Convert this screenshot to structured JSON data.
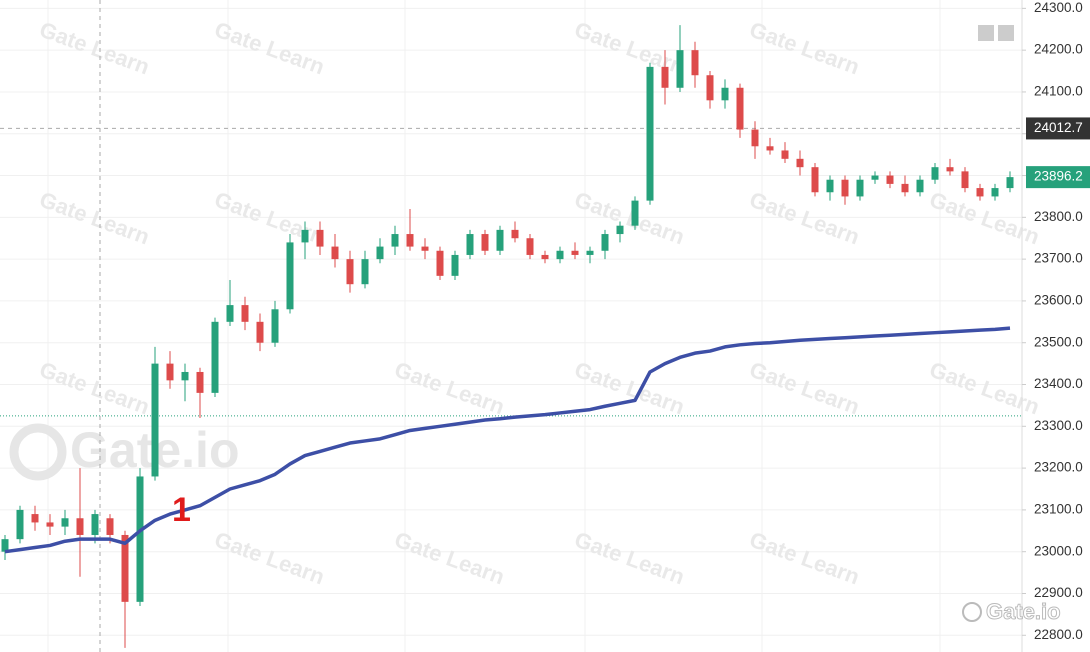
{
  "chart_data": {
    "type": "candlestick",
    "watermark": "Gate Learn",
    "brand": "Gate.io",
    "annotation": "1",
    "ylim": [
      22760,
      24320
    ],
    "yticks": [
      {
        "value": 24300,
        "label": "24300.0"
      },
      {
        "value": 24200,
        "label": "24200.0"
      },
      {
        "value": 24100,
        "label": "24100.0"
      },
      {
        "value": 24000,
        "label": "24000.0"
      },
      {
        "value": 23900,
        "label": "23900.0"
      },
      {
        "value": 23800,
        "label": "23800.0"
      },
      {
        "value": 23700,
        "label": "23700.0"
      },
      {
        "value": 23600,
        "label": "23600.0"
      },
      {
        "value": 23500,
        "label": "23500.0"
      },
      {
        "value": 23400,
        "label": "23400.0"
      },
      {
        "value": 23300,
        "label": "23300.0"
      },
      {
        "value": 23200,
        "label": "23200.0"
      },
      {
        "value": 23100,
        "label": "23100.0"
      },
      {
        "value": 23000,
        "label": "23000.0"
      },
      {
        "value": 22900,
        "label": "22900.0"
      },
      {
        "value": 22800,
        "label": "22800.0"
      }
    ],
    "grid": true,
    "crosshair_price": 24012.7,
    "last_price": 23896.2,
    "reference_line": 23325,
    "candles": {
      "up_color": "#26a17b",
      "down_color": "#dd4b4b",
      "open": [
        23000,
        23030,
        23090,
        23070,
        23060,
        23080,
        23040,
        23080,
        23040,
        22880,
        23180,
        23450,
        23410,
        23430,
        23380,
        23550,
        23590,
        23550,
        23500,
        23580,
        23740,
        23770,
        23730,
        23700,
        23640,
        23700,
        23730,
        23760,
        23730,
        23720,
        23660,
        23710,
        23760,
        23720,
        23770,
        23750,
        23710,
        23700,
        23720,
        23710,
        23720,
        23760,
        23780,
        23840,
        24160,
        24110,
        24200,
        24140,
        24080,
        24110,
        24010,
        23970,
        23960,
        23940,
        23920,
        23860,
        23890,
        23850,
        23890,
        23900,
        23880,
        23860,
        23890,
        23920,
        23910,
        23870,
        23850,
        23870
      ],
      "high": [
        23040,
        23110,
        23110,
        23090,
        23100,
        23200,
        23100,
        23090,
        23050,
        23200,
        23490,
        23480,
        23450,
        23440,
        23560,
        23650,
        23610,
        23570,
        23600,
        23760,
        23790,
        23790,
        23760,
        23720,
        23720,
        23750,
        23780,
        23820,
        23750,
        23730,
        23720,
        23770,
        23770,
        23780,
        23790,
        23760,
        23720,
        23730,
        23740,
        23730,
        23770,
        23790,
        23850,
        24170,
        24200,
        24260,
        24220,
        24150,
        24130,
        24120,
        24030,
        23990,
        23980,
        23960,
        23930,
        23900,
        23900,
        23900,
        23910,
        23910,
        23900,
        23900,
        23930,
        23940,
        23920,
        23880,
        23880,
        23910
      ],
      "low": [
        22980,
        23020,
        23050,
        23040,
        23040,
        22940,
        23020,
        23020,
        22770,
        22870,
        23170,
        23390,
        23360,
        23320,
        23370,
        23540,
        23530,
        23480,
        23490,
        23570,
        23700,
        23710,
        23680,
        23620,
        23630,
        23690,
        23710,
        23720,
        23700,
        23650,
        23650,
        23700,
        23710,
        23710,
        23740,
        23700,
        23690,
        23690,
        23700,
        23690,
        23700,
        23740,
        23770,
        23830,
        24070,
        24100,
        24110,
        24060,
        24060,
        23990,
        23940,
        23950,
        23930,
        23900,
        23850,
        23840,
        23830,
        23840,
        23880,
        23870,
        23850,
        23850,
        23880,
        23900,
        23860,
        23840,
        23840,
        23860
      ],
      "close": [
        23030,
        23100,
        23070,
        23060,
        23080,
        23040,
        23090,
        23040,
        22880,
        23180,
        23450,
        23410,
        23430,
        23380,
        23550,
        23590,
        23550,
        23500,
        23580,
        23740,
        23770,
        23730,
        23700,
        23640,
        23700,
        23730,
        23760,
        23730,
        23720,
        23660,
        23710,
        23760,
        23720,
        23770,
        23750,
        23710,
        23700,
        23720,
        23710,
        23720,
        23760,
        23780,
        23840,
        24160,
        24110,
        24200,
        24140,
        24080,
        24110,
        24010,
        23970,
        23960,
        23940,
        23920,
        23860,
        23890,
        23850,
        23890,
        23900,
        23880,
        23860,
        23890,
        23920,
        23910,
        23870,
        23850,
        23870,
        23896.2
      ]
    },
    "line": {
      "color": "#3d4fa6",
      "values": [
        23000,
        23005,
        23010,
        23015,
        23025,
        23030,
        23030,
        23030,
        23020,
        23050,
        23075,
        23090,
        23100,
        23110,
        23130,
        23150,
        23160,
        23170,
        23185,
        23210,
        23230,
        23240,
        23250,
        23260,
        23265,
        23270,
        23280,
        23290,
        23295,
        23300,
        23305,
        23310,
        23315,
        23318,
        23322,
        23325,
        23328,
        23332,
        23336,
        23340,
        23348,
        23355,
        23362,
        23430,
        23450,
        23465,
        23475,
        23480,
        23490,
        23495,
        23498,
        23500,
        23503,
        23506,
        23508,
        23510,
        23512,
        23514,
        23516,
        23518,
        23520,
        23522,
        23524,
        23526,
        23528,
        23530,
        23532,
        23535
      ]
    }
  }
}
